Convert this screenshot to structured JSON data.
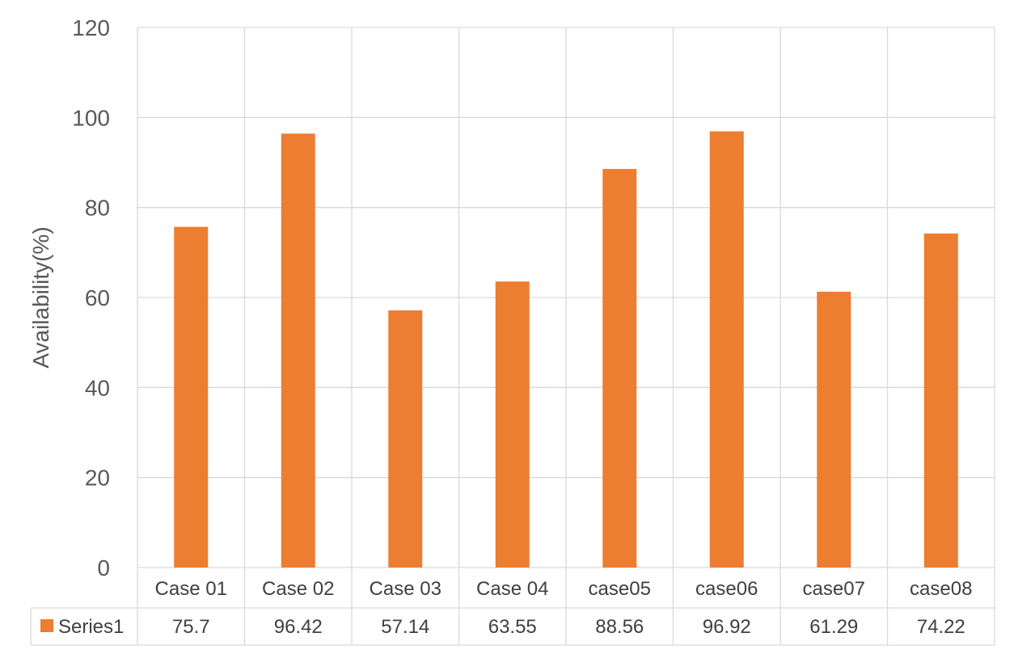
{
  "chart_data": {
    "type": "bar",
    "title": "",
    "xlabel": "",
    "ylabel": "Availability(%)",
    "ylim": [
      0,
      120
    ],
    "yticks": [
      0,
      20,
      40,
      60,
      80,
      100,
      120
    ],
    "categories": [
      "Case 01",
      "Case 02",
      "Case 03",
      "Case 04",
      "case05",
      "case06",
      "case07",
      "case08"
    ],
    "series": [
      {
        "name": "Series1",
        "values": [
          75.7,
          96.42,
          57.14,
          63.55,
          88.56,
          96.92,
          61.29,
          74.22
        ],
        "value_labels": [
          "75.7",
          "96.42",
          "57.14",
          "63.55",
          "88.56",
          "96.92",
          "61.29",
          "74.22"
        ],
        "color": "#ED7D31"
      }
    ],
    "grid": true,
    "data_table": true,
    "legend": "data-table"
  },
  "colors": {
    "bar": "#ED7D31",
    "grid": "#D9D9D9",
    "text": "#595959"
  }
}
